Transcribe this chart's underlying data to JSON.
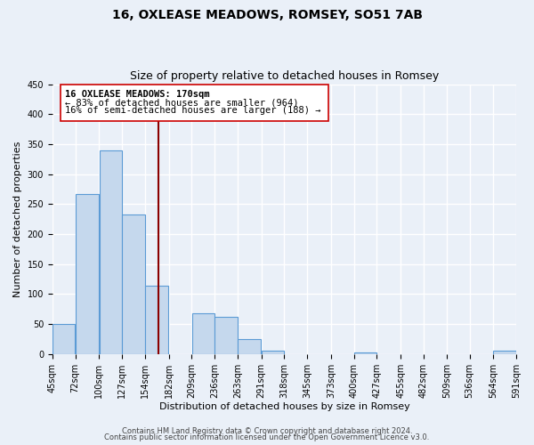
{
  "title": "16, OXLEASE MEADOWS, ROMSEY, SO51 7AB",
  "subtitle": "Size of property relative to detached houses in Romsey",
  "xlabel": "Distribution of detached houses by size in Romsey",
  "ylabel": "Number of detached properties",
  "bar_left_edges": [
    45,
    72,
    100,
    127,
    154,
    182,
    209,
    236,
    263,
    291,
    318,
    345,
    373,
    400,
    427,
    455,
    482,
    509,
    536,
    564
  ],
  "bar_widths": [
    27,
    28,
    27,
    27,
    28,
    27,
    27,
    27,
    28,
    27,
    27,
    28,
    27,
    27,
    28,
    27,
    27,
    27,
    28,
    27
  ],
  "bar_heights": [
    50,
    267,
    340,
    232,
    114,
    0,
    68,
    62,
    25,
    6,
    0,
    0,
    0,
    2,
    0,
    0,
    0,
    0,
    0,
    5
  ],
  "tick_labels": [
    "45sqm",
    "72sqm",
    "100sqm",
    "127sqm",
    "154sqm",
    "182sqm",
    "209sqm",
    "236sqm",
    "263sqm",
    "291sqm",
    "318sqm",
    "345sqm",
    "373sqm",
    "400sqm",
    "427sqm",
    "455sqm",
    "482sqm",
    "509sqm",
    "536sqm",
    "564sqm",
    "591sqm"
  ],
  "tick_positions": [
    45,
    72,
    100,
    127,
    154,
    182,
    209,
    236,
    263,
    291,
    318,
    345,
    373,
    400,
    427,
    455,
    482,
    509,
    536,
    564,
    591
  ],
  "ylim": [
    0,
    450
  ],
  "xlim": [
    45,
    591
  ],
  "yticks": [
    0,
    50,
    100,
    150,
    200,
    250,
    300,
    350,
    400,
    450
  ],
  "bar_color": "#c5d8ed",
  "bar_edge_color": "#5b9bd5",
  "vline_x": 170,
  "vline_color": "#8b0000",
  "annotation_line1": "16 OXLEASE MEADOWS: 170sqm",
  "annotation_line2": "← 83% of detached houses are smaller (964)",
  "annotation_line3": "16% of semi-detached houses are larger (188) →",
  "footer_line1": "Contains HM Land Registry data © Crown copyright and database right 2024.",
  "footer_line2": "Contains public sector information licensed under the Open Government Licence v3.0.",
  "background_color": "#eaf0f8",
  "grid_color": "#ffffff",
  "title_fontsize": 10,
  "subtitle_fontsize": 9,
  "axis_label_fontsize": 8,
  "tick_fontsize": 7,
  "annotation_fontsize": 7.5,
  "footer_fontsize": 6
}
